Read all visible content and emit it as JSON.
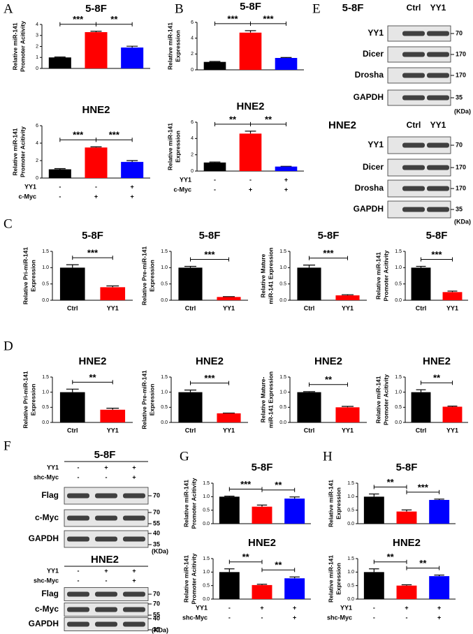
{
  "chart_data": [
    {
      "type": "bar",
      "panel": "A",
      "title": "5-8F",
      "ylabel": [
        "Relative miR-141",
        "Promoter Acitivity"
      ],
      "values": [
        1.0,
        3.3,
        1.9
      ],
      "errors": [
        0.04,
        0.08,
        0.12
      ],
      "colors": [
        "#000000",
        "#ff0000",
        "#0000ff"
      ],
      "ylim": [
        0,
        4
      ],
      "yticks": [
        0,
        1,
        2,
        3,
        4
      ],
      "significance": [
        {
          "label": "***",
          "from": 0,
          "to": 1
        },
        {
          "label": "**",
          "from": 1,
          "to": 2
        }
      ]
    },
    {
      "type": "bar",
      "title": "HNE2",
      "ylabel": [
        "Relative miR-141",
        "Promoter Acitivity"
      ],
      "values": [
        1.0,
        3.5,
        1.85
      ],
      "errors": [
        0.08,
        0.08,
        0.15
      ],
      "colors": [
        "#000000",
        "#ff0000",
        "#0000ff"
      ],
      "ylim": [
        0,
        6
      ],
      "yticks": [
        0,
        2,
        4,
        6
      ],
      "significance": [
        {
          "label": "***",
          "from": 0,
          "to": 1
        },
        {
          "label": "***",
          "from": 1,
          "to": 2
        }
      ],
      "conditions": [
        {
          "name": "YY1",
          "marks": [
            "-",
            "-",
            "+"
          ]
        },
        {
          "name": "c-Myc",
          "marks": [
            "-",
            "+",
            "+"
          ]
        }
      ]
    },
    {
      "type": "bar",
      "panel": "B",
      "title": "5-8F",
      "ylabel": [
        "Relative miR-141",
        "Expression"
      ],
      "values": [
        1.0,
        4.7,
        1.5
      ],
      "errors": [
        0.06,
        0.25,
        0.06
      ],
      "colors": [
        "#000000",
        "#ff0000",
        "#0000ff"
      ],
      "ylim": [
        0,
        6
      ],
      "yticks": [
        0,
        2,
        4,
        6
      ],
      "significance": [
        {
          "label": "***",
          "from": 0,
          "to": 1
        },
        {
          "label": "***",
          "from": 1,
          "to": 2
        }
      ]
    },
    {
      "type": "bar",
      "title": "HNE2",
      "ylabel": [
        "Relative miR-141",
        "Expression"
      ],
      "values": [
        1.05,
        4.6,
        0.55
      ],
      "errors": [
        0.06,
        0.3,
        0.03
      ],
      "colors": [
        "#000000",
        "#ff0000",
        "#0000ff"
      ],
      "ylim": [
        0,
        6
      ],
      "yticks": [
        0,
        2,
        4,
        6
      ],
      "significance": [
        {
          "label": "**",
          "from": 0,
          "to": 1
        },
        {
          "label": "**",
          "from": 1,
          "to": 2
        }
      ],
      "conditions": [
        {
          "name": "YY1",
          "marks": [
            "-",
            "-",
            "+"
          ]
        },
        {
          "name": "c-Myc",
          "marks": [
            "-",
            "+",
            "+"
          ]
        }
      ]
    },
    {
      "type": "bar",
      "panel": "C",
      "title": "5-8F",
      "ylabel": [
        "Relative Pri-miR-141",
        "Expression"
      ],
      "categories": [
        "Ctrl",
        "YY1"
      ],
      "values": [
        1.0,
        0.4
      ],
      "errors": [
        0.09,
        0.04
      ],
      "colors": [
        "#000000",
        "#ff0000"
      ],
      "ylim": [
        0,
        1.5
      ],
      "yticks": [
        {
          "value": 0,
          "label": "0.0"
        },
        0.5,
        {
          "value": 1,
          "label": "1.0"
        },
        1.5
      ],
      "significance": [
        {
          "label": "***",
          "from": 0,
          "to": 1
        }
      ]
    },
    {
      "type": "bar",
      "title": "5-8F",
      "ylabel": [
        "Relative Pre-miR-141",
        "Expression"
      ],
      "categories": [
        "Ctrl",
        "YY1"
      ],
      "values": [
        1.0,
        0.1
      ],
      "errors": [
        0.04,
        0.01
      ],
      "colors": [
        "#000000",
        "#ff0000"
      ],
      "ylim": [
        0,
        1.5
      ],
      "yticks": [
        {
          "value": 0,
          "label": "0.0"
        },
        0.5,
        {
          "value": 1,
          "label": "1.0"
        },
        1.5
      ],
      "significance": [
        {
          "label": "***",
          "from": 0,
          "to": 1
        }
      ]
    },
    {
      "type": "bar",
      "title": "5-8F",
      "ylabel": [
        "Relative Mature",
        "miR-141 Expression"
      ],
      "categories": [
        "Ctrl",
        "YY1"
      ],
      "values": [
        1.0,
        0.15
      ],
      "errors": [
        0.08,
        0.02
      ],
      "colors": [
        "#000000",
        "#ff0000"
      ],
      "ylim": [
        0,
        1.5
      ],
      "yticks": [
        {
          "value": 0,
          "label": "0.0"
        },
        0.5,
        {
          "value": 1,
          "label": "1.0"
        },
        1.5
      ],
      "significance": [
        {
          "label": "***",
          "from": 0,
          "to": 1
        }
      ]
    },
    {
      "type": "bar",
      "title": "5-8F",
      "ylabel": [
        "Relative miR-141",
        "Promoter Acitivity"
      ],
      "categories": [
        "Ctrl",
        "YY1"
      ],
      "values": [
        1.0,
        0.25
      ],
      "errors": [
        0.04,
        0.03
      ],
      "colors": [
        "#000000",
        "#ff0000"
      ],
      "ylim": [
        0,
        1.5
      ],
      "yticks": [
        {
          "value": 0,
          "label": "0.0"
        },
        0.5,
        {
          "value": 1,
          "label": "1.0"
        },
        1.5
      ],
      "significance": [
        {
          "label": "***",
          "from": 0,
          "to": 1
        }
      ]
    },
    {
      "type": "bar",
      "panel": "D",
      "title": "HNE2",
      "ylabel": [
        "Relative Pri-miR-141",
        "Expression"
      ],
      "categories": [
        "Ctrl",
        "YY1"
      ],
      "values": [
        1.0,
        0.42
      ],
      "errors": [
        0.1,
        0.05
      ],
      "colors": [
        "#000000",
        "#ff0000"
      ],
      "ylim": [
        0,
        1.5
      ],
      "yticks": [
        {
          "value": 0,
          "label": "0.0"
        },
        0.5,
        {
          "value": 1,
          "label": "1.0"
        },
        1.5
      ],
      "significance": [
        {
          "label": "**",
          "from": 0,
          "to": 1
        }
      ]
    },
    {
      "type": "bar",
      "title": "HNE2",
      "ylabel": [
        "Relative Pre-miR-141",
        "Expression"
      ],
      "categories": [
        "Ctrl",
        "YY1"
      ],
      "values": [
        1.0,
        0.3
      ],
      "errors": [
        0.07,
        0.01
      ],
      "colors": [
        "#000000",
        "#ff0000"
      ],
      "ylim": [
        0,
        1.5
      ],
      "yticks": [
        {
          "value": 0,
          "label": "0.0"
        },
        0.5,
        {
          "value": 1,
          "label": "1.0"
        },
        1.5
      ],
      "significance": [
        {
          "label": "***",
          "from": 0,
          "to": 1
        }
      ]
    },
    {
      "type": "bar",
      "title": "HNE2",
      "ylabel": [
        "Relative Mature-",
        "miR-141 Expression"
      ],
      "categories": [
        "Ctrl",
        "YY1"
      ],
      "values": [
        1.0,
        0.5
      ],
      "errors": [
        0.02,
        0.03
      ],
      "colors": [
        "#000000",
        "#ff0000"
      ],
      "ylim": [
        0,
        1.5
      ],
      "yticks": [
        {
          "value": 0,
          "label": "0.0"
        },
        0.5,
        {
          "value": 1,
          "label": "1.0"
        },
        1.5
      ],
      "significance": [
        {
          "label": "**",
          "from": 0,
          "to": 1
        }
      ]
    },
    {
      "type": "bar",
      "title": "HNE2",
      "ylabel": [
        "Relative miR-141",
        "Promoter Acitivity"
      ],
      "categories": [
        "Ctrl",
        "YY1"
      ],
      "values": [
        1.0,
        0.52
      ],
      "errors": [
        0.08,
        0.02
      ],
      "colors": [
        "#000000",
        "#ff0000"
      ],
      "ylim": [
        0,
        1.5
      ],
      "yticks": [
        {
          "value": 0,
          "label": "0.0"
        },
        0.5,
        {
          "value": 1,
          "label": "1.0"
        },
        1.5
      ],
      "significance": [
        {
          "label": "**",
          "from": 0,
          "to": 1
        }
      ]
    },
    {
      "type": "bar",
      "panel": "G",
      "title": "5-8F",
      "ylabel": [
        "Relative miR-141",
        "Promoter  Acitivity"
      ],
      "values": [
        1.0,
        0.63,
        0.93
      ],
      "errors": [
        0.02,
        0.06,
        0.06
      ],
      "colors": [
        "#000000",
        "#ff0000",
        "#0000ff"
      ],
      "ylim": [
        0,
        1.5
      ],
      "yticks": [
        {
          "value": 0,
          "label": "0.0"
        },
        0.5,
        {
          "value": 1,
          "label": "1.0"
        },
        1.5
      ],
      "significance": [
        {
          "label": "***",
          "from": 0,
          "to": 1
        },
        {
          "label": "**",
          "from": 1,
          "to": 2
        }
      ]
    },
    {
      "type": "bar",
      "title": "HNE2",
      "ylabel": [
        "Relative miR-141",
        "Promoter Acitivity"
      ],
      "values": [
        1.0,
        0.52,
        0.77
      ],
      "errors": [
        0.12,
        0.03,
        0.05
      ],
      "colors": [
        "#000000",
        "#ff0000",
        "#0000ff"
      ],
      "ylim": [
        0,
        1.5
      ],
      "yticks": [
        {
          "value": 0,
          "label": "0.0"
        },
        0.5,
        {
          "value": 1,
          "label": "1.0"
        },
        1.5
      ],
      "significance": [
        {
          "label": "**",
          "from": 0,
          "to": 1
        },
        {
          "label": "**",
          "from": 1,
          "to": 2
        }
      ],
      "conditions": [
        {
          "name": "YY1",
          "marks": [
            "-",
            "+",
            "+"
          ]
        },
        {
          "name": "shc-Myc",
          "marks": [
            "-",
            "-",
            "+"
          ]
        }
      ]
    },
    {
      "type": "bar",
      "panel": "H",
      "title": "5-8F",
      "ylabel": [
        "Relative miR-141",
        "Expression"
      ],
      "values": [
        1.0,
        0.45,
        0.88
      ],
      "errors": [
        0.1,
        0.06,
        0.03
      ],
      "colors": [
        "#000000",
        "#ff0000",
        "#0000ff"
      ],
      "ylim": [
        0,
        1.5
      ],
      "yticks": [
        {
          "value": 0,
          "label": "0.0"
        },
        0.5,
        {
          "value": 1,
          "label": "1.0"
        },
        1.5
      ],
      "significance": [
        {
          "label": "**",
          "from": 0,
          "to": 1
        },
        {
          "label": "***",
          "from": 1,
          "to": 2
        }
      ]
    },
    {
      "type": "bar",
      "title": "HNE2",
      "ylabel": [
        "Relative miR-141",
        "Expression"
      ],
      "values": [
        1.0,
        0.5,
        0.85
      ],
      "errors": [
        0.12,
        0.03,
        0.04
      ],
      "colors": [
        "#000000",
        "#ff0000",
        "#0000ff"
      ],
      "ylim": [
        0,
        1.5
      ],
      "yticks": [
        {
          "value": 0,
          "label": "0.0"
        },
        0.5,
        {
          "value": 1,
          "label": "1.0"
        },
        1.5
      ],
      "significance": [
        {
          "label": "**",
          "from": 0,
          "to": 1
        },
        {
          "label": "**",
          "from": 1,
          "to": 2
        }
      ],
      "conditions": [
        {
          "name": "YY1",
          "marks": [
            "-",
            "+",
            "+"
          ]
        },
        {
          "name": "shc-Myc",
          "marks": [
            "-",
            "-",
            "+"
          ]
        }
      ]
    }
  ],
  "blots": [
    {
      "panel": "E",
      "groups": [
        {
          "title": "5-8F",
          "lanes": [
            "Ctrl",
            "YY1"
          ],
          "rows": [
            {
              "label": "YY1",
              "markers": [
                "70"
              ]
            },
            {
              "label": "Dicer",
              "markers": [
                "170"
              ]
            },
            {
              "label": "Drosha",
              "markers": [
                "170"
              ]
            },
            {
              "label": "GAPDH",
              "markers": [
                "35"
              ]
            }
          ],
          "unit": "(KDa)"
        },
        {
          "title": "HNE2",
          "lanes": [
            "Ctrl",
            "YY1"
          ],
          "rows": [
            {
              "label": "YY1",
              "markers": [
                "70"
              ]
            },
            {
              "label": "Dicer",
              "markers": [
                "170"
              ]
            },
            {
              "label": "Drosha",
              "markers": [
                "170"
              ]
            },
            {
              "label": "GAPDH",
              "markers": [
                "35"
              ]
            }
          ],
          "unit": "(KDa)"
        }
      ]
    },
    {
      "panel": "F",
      "groups": [
        {
          "title": "5-8F",
          "conditions": [
            {
              "name": "YY1",
              "marks": [
                "-",
                "+",
                "+"
              ]
            },
            {
              "name": "shc-Myc",
              "marks": [
                "-",
                "-",
                "+"
              ]
            }
          ],
          "rows": [
            {
              "label": "Flag",
              "markers": [
                "70"
              ]
            },
            {
              "label": "c-Myc",
              "markers": [
                "70",
                "55"
              ]
            },
            {
              "label": "GAPDH",
              "markers": [
                "40",
                "35"
              ]
            }
          ],
          "unit": "(KDa)"
        },
        {
          "title": "HNE2",
          "conditions": [
            {
              "name": "YY1",
              "marks": [
                "-",
                "+",
                "+"
              ]
            },
            {
              "name": "shc-Myc",
              "marks": [
                "-",
                "-",
                "+"
              ]
            }
          ],
          "rows": [
            {
              "label": "Flag",
              "markers": [
                "70"
              ]
            },
            {
              "label": "c-Myc",
              "markers": [
                "70",
                "55"
              ]
            },
            {
              "label": "GAPDH",
              "markers": [
                "40",
                "35"
              ]
            }
          ],
          "unit": "(KDa)"
        }
      ]
    }
  ]
}
